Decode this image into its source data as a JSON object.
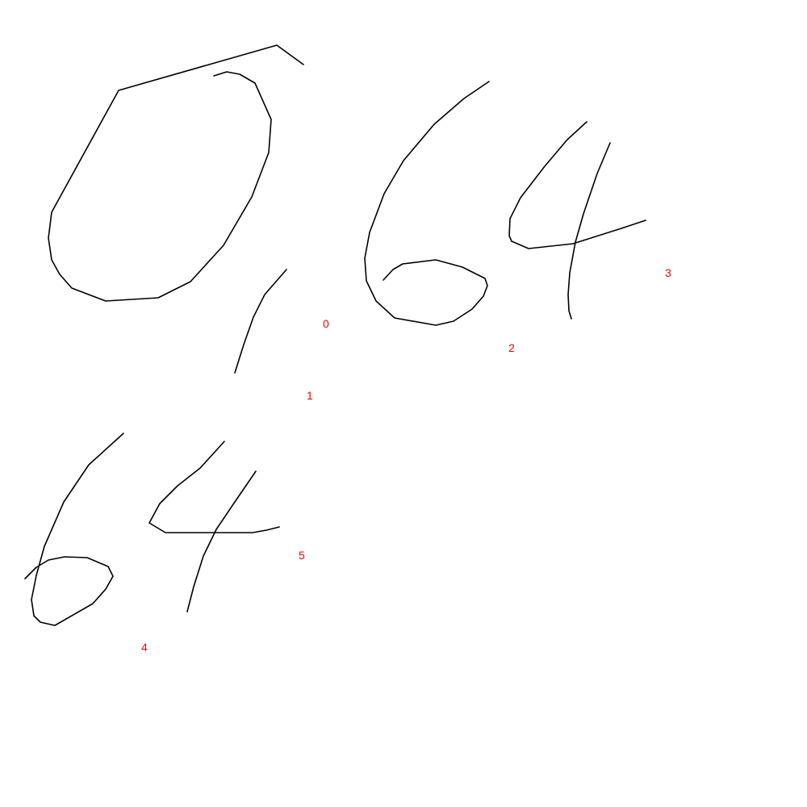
{
  "colors": {
    "background": "#ffffff",
    "stroke": "#000000",
    "label": "#ff0000"
  },
  "strokes": [
    {
      "label": "0"
    },
    {
      "label": "1"
    },
    {
      "label": "2"
    },
    {
      "label": "3"
    },
    {
      "label": "4"
    },
    {
      "label": "5"
    }
  ]
}
